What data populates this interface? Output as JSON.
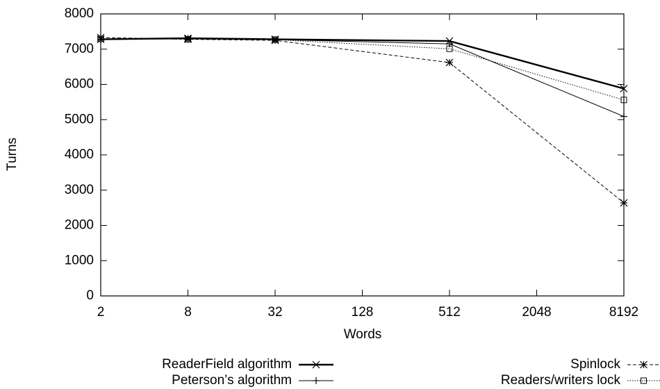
{
  "chart_data": {
    "type": "line",
    "xlabel": "Words",
    "ylabel": "Turns",
    "x": [
      2,
      8,
      32,
      512,
      8192
    ],
    "xscale": "log",
    "xlim": [
      2,
      8192
    ],
    "xticks": [
      2,
      8,
      32,
      128,
      512,
      2048,
      8192
    ],
    "ylim": [
      0,
      8000
    ],
    "yticks": [
      0,
      1000,
      2000,
      3000,
      4000,
      5000,
      6000,
      7000,
      8000
    ],
    "legend": "bottom",
    "series": [
      {
        "name": "ReaderField algorithm",
        "color": "#000000",
        "line_style": "thick",
        "marker": "x",
        "values": [
          7280,
          7310,
          7280,
          7230,
          5880
        ]
      },
      {
        "name": "Peterson’s algorithm",
        "color": "#000000",
        "line_style": "solid",
        "marker": "plus",
        "values": [
          7280,
          7300,
          7270,
          7150,
          5090
        ]
      },
      {
        "name": "Spinlock",
        "color": "#000000",
        "line_style": "dashed",
        "marker": "star",
        "values": [
          7330,
          7280,
          7250,
          6620,
          2640
        ]
      },
      {
        "name": "Readers/writers lock",
        "color": "#000000",
        "line_style": "dotted",
        "marker": "square",
        "values": [
          7290,
          7280,
          7270,
          7010,
          5560
        ]
      }
    ]
  }
}
